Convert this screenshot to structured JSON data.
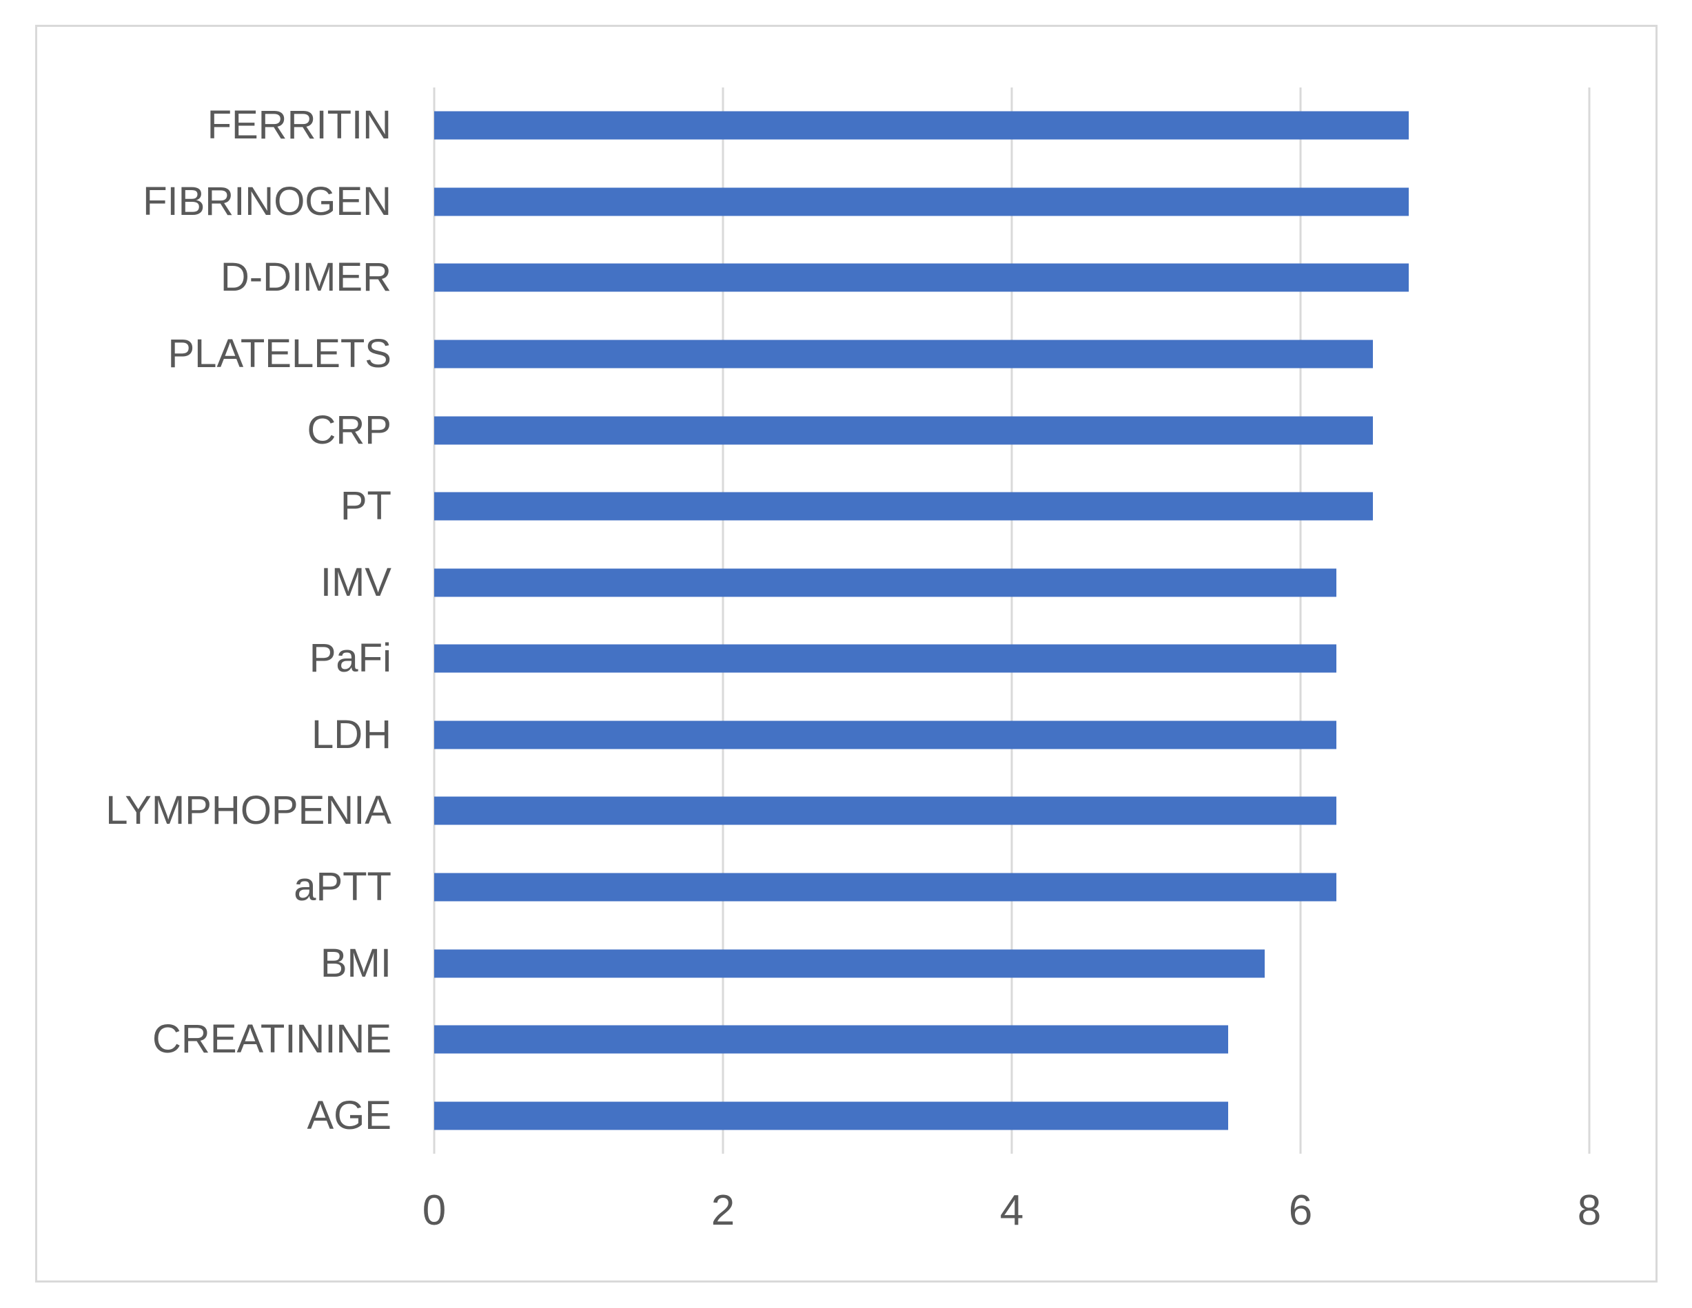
{
  "chart_data": {
    "type": "bar",
    "orientation": "horizontal",
    "title": "",
    "xlabel": "",
    "ylabel": "",
    "categories": [
      "FERRITIN",
      "FIBRINOGEN",
      "D-DIMER",
      "PLATELETS",
      "CRP",
      "PT",
      "IMV",
      "PaFi",
      "LDH",
      "LYMPHOPENIA",
      "aPTT",
      "BMI",
      "CREATININE",
      "AGE"
    ],
    "values": [
      6.75,
      6.75,
      6.75,
      6.5,
      6.5,
      6.5,
      6.25,
      6.25,
      6.25,
      6.25,
      6.25,
      5.75,
      5.5,
      5.5
    ],
    "xlim": [
      0,
      8
    ],
    "x_ticks": [
      0,
      2,
      4,
      6,
      8
    ],
    "grid": "vertical-only",
    "legend": "none",
    "colors": {
      "bar": "#4472C4",
      "gridline": "#D9D9D9",
      "frame_border": "#D9D9D9",
      "text": "#595959",
      "background": "#FFFFFF"
    }
  }
}
